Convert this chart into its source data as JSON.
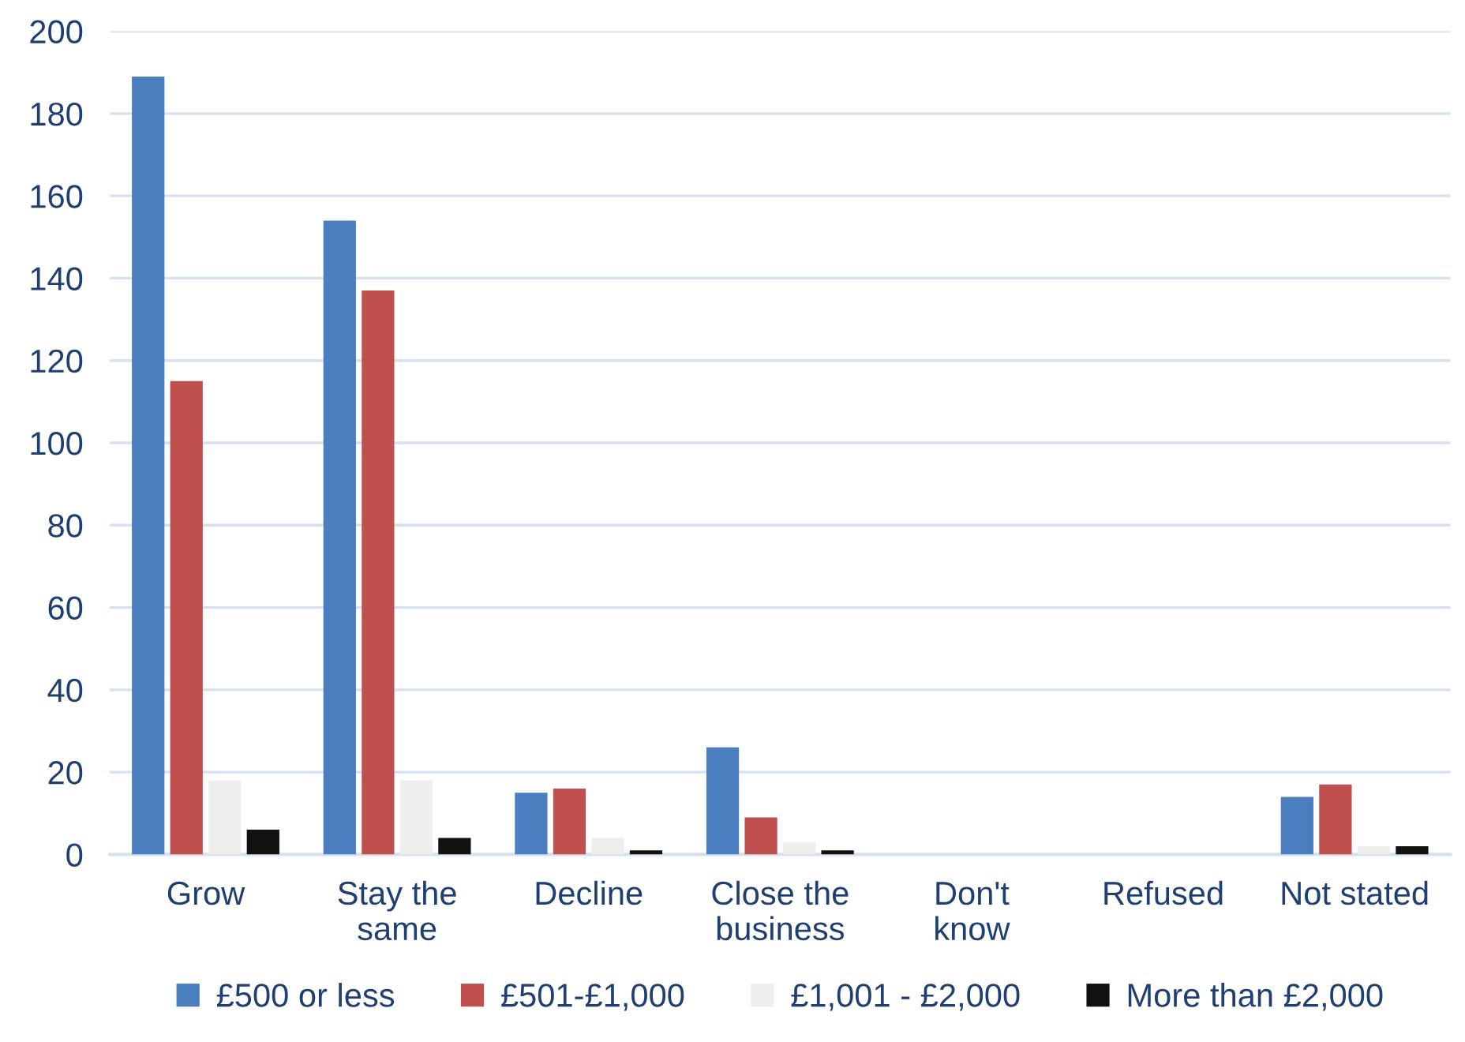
{
  "chart_data": {
    "type": "bar",
    "categories": [
      "Grow",
      "Stay the\nsame",
      "Decline",
      "Close the\nbusiness",
      "Don't\nknow",
      "Refused",
      "Not stated"
    ],
    "series": [
      {
        "name": "£500 or less",
        "color": "#4a7ebf",
        "values": [
          189,
          154,
          15,
          26,
          0,
          0,
          14
        ]
      },
      {
        "name": "£501-£1,000",
        "color": "#c0504d",
        "values": [
          115,
          137,
          16,
          9,
          0,
          0,
          17
        ]
      },
      {
        "name": "£1,001 - £2,000",
        "color": "#eeeeee",
        "values": [
          18,
          18,
          4,
          3,
          0,
          0,
          2
        ]
      },
      {
        "name": "More than £2,000",
        "color": "#111111",
        "values": [
          6,
          4,
          1,
          1,
          0,
          0,
          2
        ]
      }
    ],
    "ylim": [
      0,
      200
    ],
    "yticks": [
      0,
      20,
      40,
      60,
      80,
      100,
      120,
      140,
      160,
      180,
      200
    ],
    "grid": "y",
    "legend": "bottom"
  }
}
